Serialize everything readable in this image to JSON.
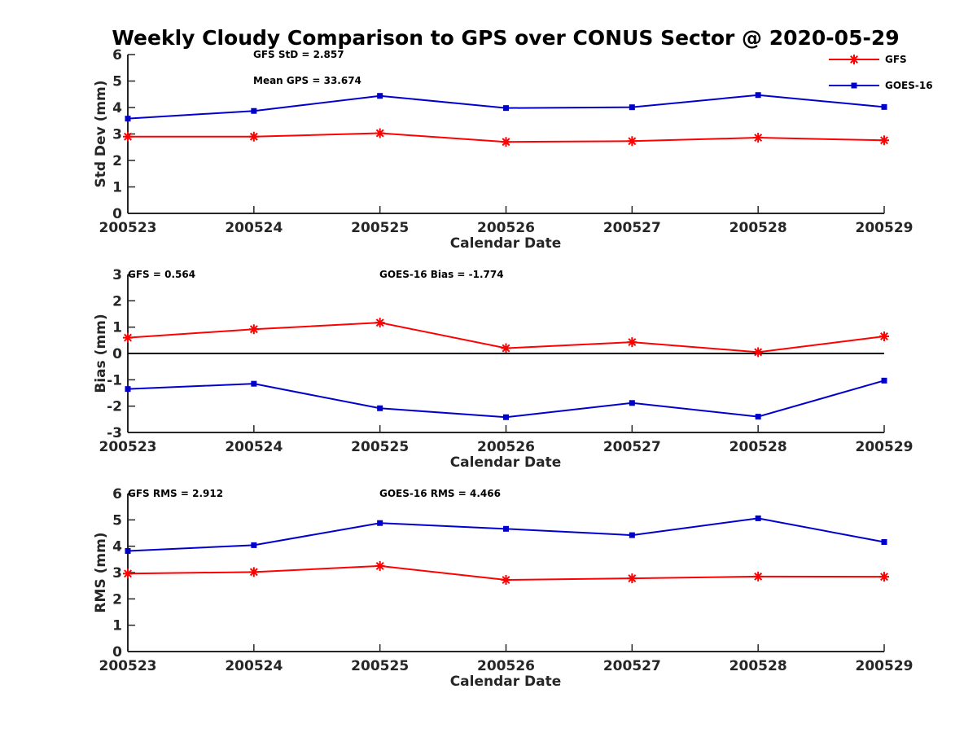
{
  "title": "Weekly Cloudy Comparison to GPS over CONUS Sector @ 2020-05-29",
  "colors": {
    "gfs": "#ff0000",
    "goes16": "#0000cc",
    "axis": "#262626",
    "zero_line": "#000000"
  },
  "legend": {
    "placement": "top-right",
    "entries": [
      "GFS",
      "GOES-16"
    ]
  },
  "chart_data": [
    {
      "type": "line",
      "categories": [
        "200523",
        "200524",
        "200525",
        "200526",
        "200527",
        "200528",
        "200529"
      ],
      "xlabel": "Calendar Date",
      "ylabel": "Std Dev (mm)",
      "ylim": [
        0,
        6
      ],
      "yticks": [
        "0",
        "1",
        "2",
        "3",
        "4",
        "5",
        "6"
      ],
      "zero_line": false,
      "annotations": [
        "GFS StD = 2.857",
        "Mean GPS = 33.674"
      ],
      "series": [
        {
          "name": "GFS",
          "marker": "star",
          "values": [
            2.9,
            2.9,
            3.03,
            2.7,
            2.73,
            2.86,
            2.76
          ]
        },
        {
          "name": "GOES-16",
          "marker": "square",
          "values": [
            3.58,
            3.87,
            4.44,
            3.98,
            4.01,
            4.47,
            4.02
          ]
        }
      ]
    },
    {
      "type": "line",
      "categories": [
        "200523",
        "200524",
        "200525",
        "200526",
        "200527",
        "200528",
        "200529"
      ],
      "xlabel": "Calendar Date",
      "ylabel": "Bias (mm)",
      "ylim": [
        -3,
        3
      ],
      "yticks": [
        "-3",
        "-2",
        "-1",
        "0",
        "1",
        "2",
        "3"
      ],
      "zero_line": true,
      "annotations": [
        "GFS = 0.564",
        "GOES-16 Bias  = -1.774"
      ],
      "series": [
        {
          "name": "GFS",
          "marker": "star",
          "values": [
            0.6,
            0.92,
            1.17,
            0.2,
            0.43,
            0.05,
            0.65
          ]
        },
        {
          "name": "GOES-16",
          "marker": "square",
          "values": [
            -1.35,
            -1.15,
            -2.08,
            -2.42,
            -1.88,
            -2.4,
            -1.03
          ]
        }
      ]
    },
    {
      "type": "line",
      "categories": [
        "200523",
        "200524",
        "200525",
        "200526",
        "200527",
        "200528",
        "200529"
      ],
      "xlabel": "Calendar Date",
      "ylabel": "RMS (mm)",
      "ylim": [
        0,
        6
      ],
      "yticks": [
        "0",
        "1",
        "2",
        "3",
        "4",
        "5",
        "6"
      ],
      "zero_line": false,
      "annotations": [
        "GFS RMS = 2.912",
        "GOES-16 RMS = 4.466"
      ],
      "series": [
        {
          "name": "GFS",
          "marker": "star",
          "values": [
            2.96,
            3.02,
            3.25,
            2.72,
            2.78,
            2.85,
            2.84
          ]
        },
        {
          "name": "GOES-16",
          "marker": "square",
          "values": [
            3.82,
            4.04,
            4.88,
            4.66,
            4.42,
            5.06,
            4.16
          ]
        }
      ]
    }
  ]
}
